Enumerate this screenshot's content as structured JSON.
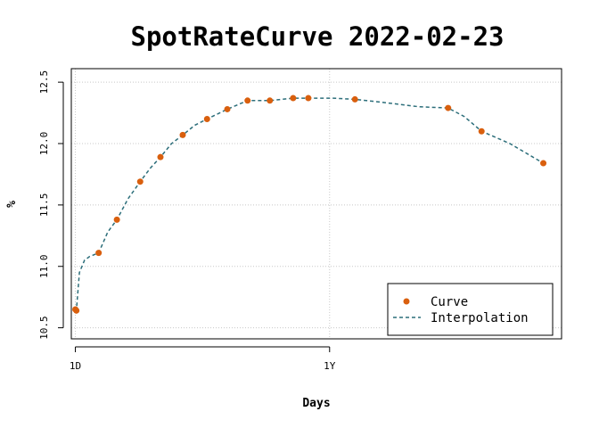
{
  "chart_data": {
    "type": "line",
    "title": "SpotRateCurve 2022-02-23",
    "xlabel": "Days",
    "ylabel": "%",
    "x_ticks": [
      {
        "label": "1D",
        "value": 1
      },
      {
        "label": "1Y",
        "value": 252
      }
    ],
    "y_ticks": [
      10.5,
      11.0,
      11.5,
      12.0,
      12.5
    ],
    "y_tick_labels": [
      "10.5",
      "11.0",
      "11.5",
      "12.0",
      "12.5"
    ],
    "xlim": [
      -3,
      481
    ],
    "ylim": [
      10.41,
      12.61
    ],
    "grid": true,
    "legend_position": "bottom-right",
    "colors": {
      "curve": "#d95f0e",
      "interpolation": "#2c6e7a",
      "grid": "#c8c8c8",
      "axis": "#000000"
    },
    "series": [
      {
        "name": "Curve",
        "style": "points",
        "x": [
          1,
          2,
          24,
          42,
          65,
          85,
          107,
          131,
          151,
          171,
          193,
          216,
          231,
          277,
          369,
          402,
          463
        ],
        "y": [
          10.65,
          10.64,
          11.11,
          11.38,
          11.69,
          11.89,
          12.07,
          12.2,
          12.28,
          12.35,
          12.35,
          12.37,
          12.37,
          12.36,
          12.29,
          12.1,
          11.84
        ]
      },
      {
        "name": "Interpolation",
        "style": "dashed-line",
        "x": [
          1,
          2,
          5,
          10,
          15,
          24,
          33,
          42,
          53,
          65,
          75,
          85,
          96,
          107,
          119,
          131,
          151,
          171,
          193,
          216,
          231,
          255,
          277,
          300,
          320,
          340,
          369,
          385,
          402,
          430,
          463
        ],
        "y": [
          10.65,
          10.64,
          10.95,
          11.05,
          11.08,
          11.11,
          11.28,
          11.38,
          11.55,
          11.69,
          11.8,
          11.89,
          12.0,
          12.07,
          12.15,
          12.2,
          12.28,
          12.35,
          12.35,
          12.37,
          12.37,
          12.37,
          12.36,
          12.34,
          12.32,
          12.3,
          12.29,
          12.22,
          12.1,
          12.0,
          11.84
        ]
      }
    ]
  }
}
